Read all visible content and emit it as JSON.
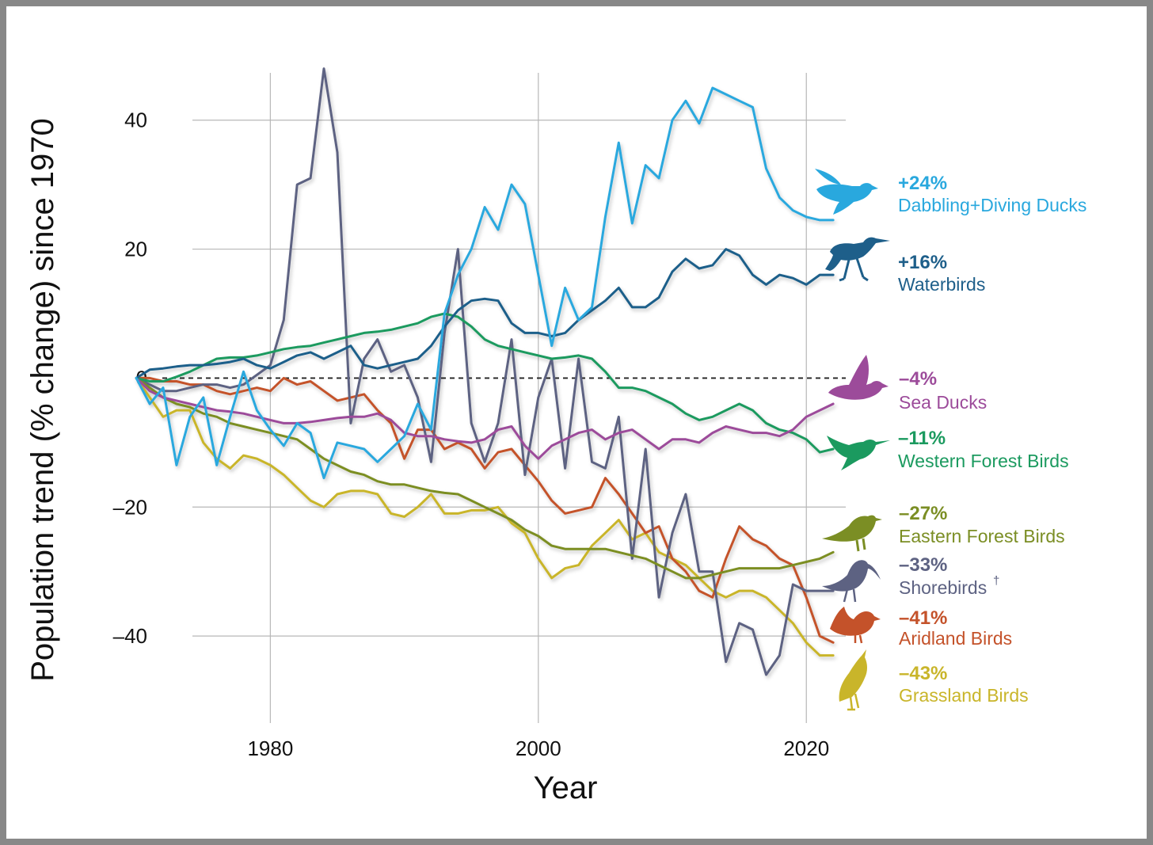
{
  "chart_data": {
    "type": "line",
    "title": "",
    "xlabel": "Year",
    "ylabel": "Population trend (% change) since 1970",
    "xlim": [
      1960.3,
      2023
    ],
    "ylim": [
      -46,
      52
    ],
    "xticks": [
      1980,
      2000,
      2020
    ],
    "xtick_labels": [
      "1980",
      "2000",
      "2020"
    ],
    "yticks": [
      40,
      20,
      0,
      -20,
      -40
    ],
    "ytick_labels": [
      "40",
      "20",
      "0",
      "–20",
      "–40"
    ],
    "grid": true,
    "baseline": 0,
    "x": [
      1970,
      1971,
      1972,
      1973,
      1974,
      1975,
      1976,
      1977,
      1978,
      1979,
      1980,
      1981,
      1982,
      1983,
      1984,
      1985,
      1986,
      1987,
      1988,
      1989,
      1990,
      1991,
      1992,
      1993,
      1994,
      1995,
      1996,
      1997,
      1998,
      1999,
      2000,
      2001,
      2002,
      2003,
      2004,
      2005,
      2006,
      2007,
      2008,
      2009,
      2010,
      2011,
      2012,
      2013,
      2014,
      2015,
      2016,
      2017,
      2018,
      2019,
      2020,
      2021,
      2022
    ],
    "series": [
      {
        "name": "Dabbling+Diving Ducks",
        "pct_label": "+24%",
        "color": "#29a8de",
        "icon": "duck-flying-icon",
        "values": [
          0,
          -4,
          -1.5,
          -13.5,
          -6,
          -3,
          -13.5,
          -6,
          1,
          -5,
          -8,
          -10.5,
          -7,
          -8.5,
          -15.5,
          -10,
          -10.5,
          -11,
          -13,
          -11,
          -9,
          -4,
          -8,
          10,
          16,
          20,
          26.5,
          23,
          30,
          27,
          16,
          5,
          14,
          9,
          11,
          25,
          36.5,
          24,
          33,
          31,
          40,
          43,
          39.5,
          45,
          44,
          43,
          42,
          32.5,
          28,
          26,
          25,
          24.5,
          24.5
        ]
      },
      {
        "name": "Waterbirds",
        "pct_label": "+16%",
        "color": "#1e5f8a",
        "icon": "heron-icon",
        "values": [
          0,
          1.3,
          1.5,
          1.8,
          2,
          2,
          2.2,
          2.5,
          3,
          2,
          1.5,
          2.5,
          3.5,
          4,
          3,
          4,
          5,
          2,
          1.5,
          2,
          2.5,
          3,
          5,
          8,
          10.5,
          12,
          12.3,
          12,
          8.5,
          7,
          7,
          6.5,
          7,
          9,
          10.5,
          12,
          14,
          11,
          11,
          12.5,
          16.5,
          18.5,
          17,
          17.5,
          20,
          19,
          16,
          14.5,
          16,
          15.5,
          14.5,
          16,
          16
        ]
      },
      {
        "name": "Sea Ducks",
        "pct_label": "–4%",
        "color": "#9c4b9a",
        "icon": "sea-duck-icon",
        "values": [
          0,
          -2,
          -3,
          -3.5,
          -4,
          -4.5,
          -5,
          -5.2,
          -5.5,
          -6,
          -6.5,
          -7,
          -7,
          -6.8,
          -6.5,
          -6.2,
          -6,
          -6,
          -5.5,
          -6.5,
          -8.5,
          -9,
          -9,
          -9.5,
          -9.8,
          -10,
          -9.5,
          -8,
          -7.5,
          -10.5,
          -12.5,
          -10.5,
          -9.5,
          -8.5,
          -8,
          -9.5,
          -8.5,
          -8,
          -9.5,
          -11,
          -9.5,
          -9.5,
          -10,
          -8.5,
          -7.5,
          -8,
          -8.5,
          -8.5,
          -9,
          -8,
          -6,
          -5,
          -4
        ]
      },
      {
        "name": "Western Forest Birds",
        "pct_label": "–11%",
        "color": "#1b9a5f",
        "icon": "hummingbird-icon",
        "values": [
          0,
          -0.5,
          -0.5,
          0.2,
          1,
          2,
          3,
          3.2,
          3.2,
          3.5,
          4,
          4.5,
          4.8,
          5,
          5.5,
          6,
          6.5,
          7,
          7.2,
          7.5,
          8,
          8.5,
          9.5,
          10,
          9.5,
          8,
          6,
          5,
          4.5,
          4,
          3.5,
          3,
          3.2,
          3.5,
          3,
          1,
          -1.5,
          -1.5,
          -2,
          -3,
          -4,
          -5.5,
          -6.5,
          -6,
          -5,
          -4,
          -5,
          -7,
          -8,
          -8.5,
          -9.5,
          -11.5,
          -11
        ]
      },
      {
        "name": "Eastern Forest Birds",
        "pct_label": "–27%",
        "color": "#7b8e24",
        "icon": "warbler-icon",
        "values": [
          0,
          -1.5,
          -3,
          -4,
          -4.5,
          -5.5,
          -6,
          -7,
          -7.5,
          -8,
          -8.5,
          -9,
          -9.5,
          -11,
          -12.5,
          -13.5,
          -14.5,
          -15,
          -16,
          -16.5,
          -16.5,
          -17,
          -17.5,
          -17.8,
          -18,
          -19,
          -20,
          -21,
          -22,
          -23.5,
          -24.5,
          -26,
          -26.5,
          -26.5,
          -26.5,
          -26.5,
          -27,
          -27.5,
          -28,
          -29,
          -30,
          -31,
          -31,
          -30.5,
          -30,
          -29.5,
          -29.5,
          -29.5,
          -29.5,
          -29,
          -28.5,
          -28,
          -27
        ]
      },
      {
        "name": "Shorebirds",
        "note": "†",
        "pct_label": "–33%",
        "color": "#5d6282",
        "icon": "curlew-icon",
        "values": [
          0,
          -1,
          -2,
          -2,
          -1.5,
          -1,
          -1,
          -1.5,
          -1,
          0.5,
          2,
          9,
          30,
          31,
          48,
          35,
          -7,
          3,
          6,
          1,
          2,
          -3,
          -13,
          7,
          20,
          -7,
          -13,
          -7,
          6,
          -15,
          -3,
          3,
          -14,
          3,
          -13,
          -14,
          -6,
          -28,
          -11,
          -34,
          -24,
          -18,
          -30,
          -30,
          -44,
          -38,
          -39,
          -46,
          -43,
          -32,
          -33,
          -33,
          -33
        ]
      },
      {
        "name": "Aridland Birds",
        "pct_label": "–41%",
        "color": "#c4522a",
        "icon": "cactus-wren-icon",
        "values": [
          0,
          0,
          -0.5,
          -0.5,
          -1,
          -1,
          -2,
          -2.5,
          -2,
          -1.5,
          -2,
          0,
          -1,
          -0.5,
          -2,
          -3.5,
          -3,
          -2.5,
          -5,
          -7,
          -12.5,
          -8,
          -8,
          -11,
          -10,
          -11,
          -14,
          -11.5,
          -11,
          -13.5,
          -16,
          -19,
          -21,
          -20.5,
          -20,
          -15.5,
          -18,
          -21,
          -24,
          -23,
          -28,
          -30,
          -33,
          -34,
          -28,
          -23,
          -25,
          -26,
          -28,
          -29,
          -34,
          -40,
          -41
        ]
      },
      {
        "name": "Grassland Birds",
        "pct_label": "–43%",
        "color": "#c9b52a",
        "icon": "meadowlark-icon",
        "values": [
          0,
          -3,
          -6,
          -5,
          -5,
          -10,
          -12.5,
          -14,
          -12,
          -12.5,
          -13.5,
          -15,
          -17,
          -19,
          -20,
          -18,
          -17.5,
          -17.5,
          -18,
          -21,
          -21.5,
          -20,
          -18,
          -21,
          -21,
          -20.5,
          -20.5,
          -20,
          -22.5,
          -24,
          -28,
          -31,
          -29.5,
          -29,
          -26,
          -24,
          -22,
          -25,
          -24,
          -27,
          -28,
          -29,
          -31,
          -33,
          -34,
          -33,
          -33,
          -34,
          -36,
          -38,
          -41,
          -43,
          -43
        ]
      }
    ]
  }
}
